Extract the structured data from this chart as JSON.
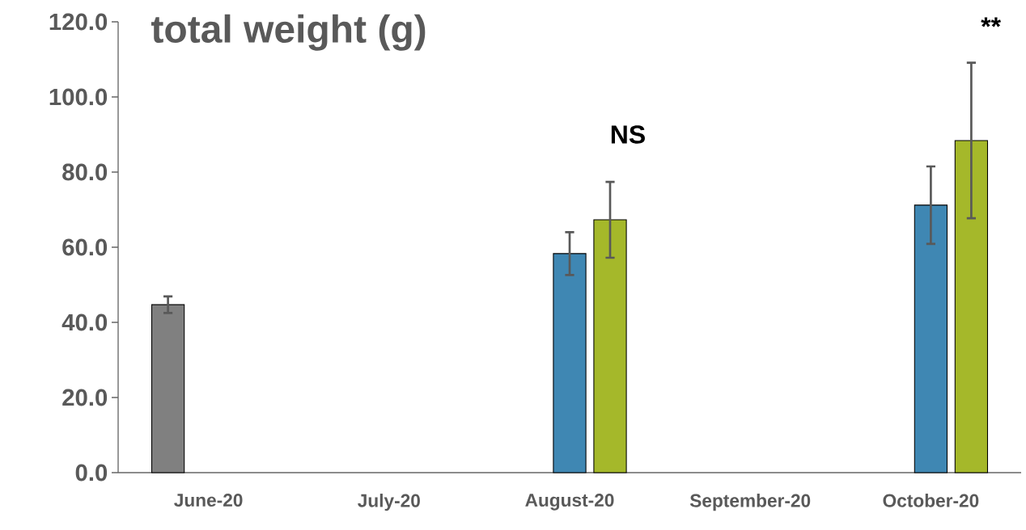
{
  "chart_data": {
    "type": "bar",
    "title": "total weight (g)",
    "categories": [
      "June-20",
      "July-20",
      "August-20",
      "September-20",
      "October-20"
    ],
    "series": [
      {
        "color": "#808080",
        "values": [
          44.7,
          null,
          null,
          null,
          null
        ],
        "errors": [
          2.2,
          null,
          null,
          null,
          null
        ]
      },
      {
        "color": "#3f87b3",
        "values": [
          null,
          null,
          58.3,
          null,
          71.2
        ],
        "errors": [
          null,
          null,
          5.7,
          null,
          10.3
        ]
      },
      {
        "color": "#a5b82a",
        "values": [
          null,
          null,
          67.3,
          null,
          88.4
        ],
        "errors": [
          null,
          null,
          10.1,
          null,
          20.7
        ]
      }
    ],
    "ylim": [
      0,
      120
    ],
    "yticks": [
      {
        "value": 0,
        "label": "0.0"
      },
      {
        "value": 20,
        "label": "20.0"
      },
      {
        "value": 40,
        "label": "40.0"
      },
      {
        "value": 60,
        "label": "60.0"
      },
      {
        "value": 80,
        "label": "80.0"
      },
      {
        "value": 100,
        "label": "100.0"
      },
      {
        "value": 120,
        "label": "120.0"
      }
    ],
    "annotations": [
      "NS",
      "**"
    ]
  }
}
